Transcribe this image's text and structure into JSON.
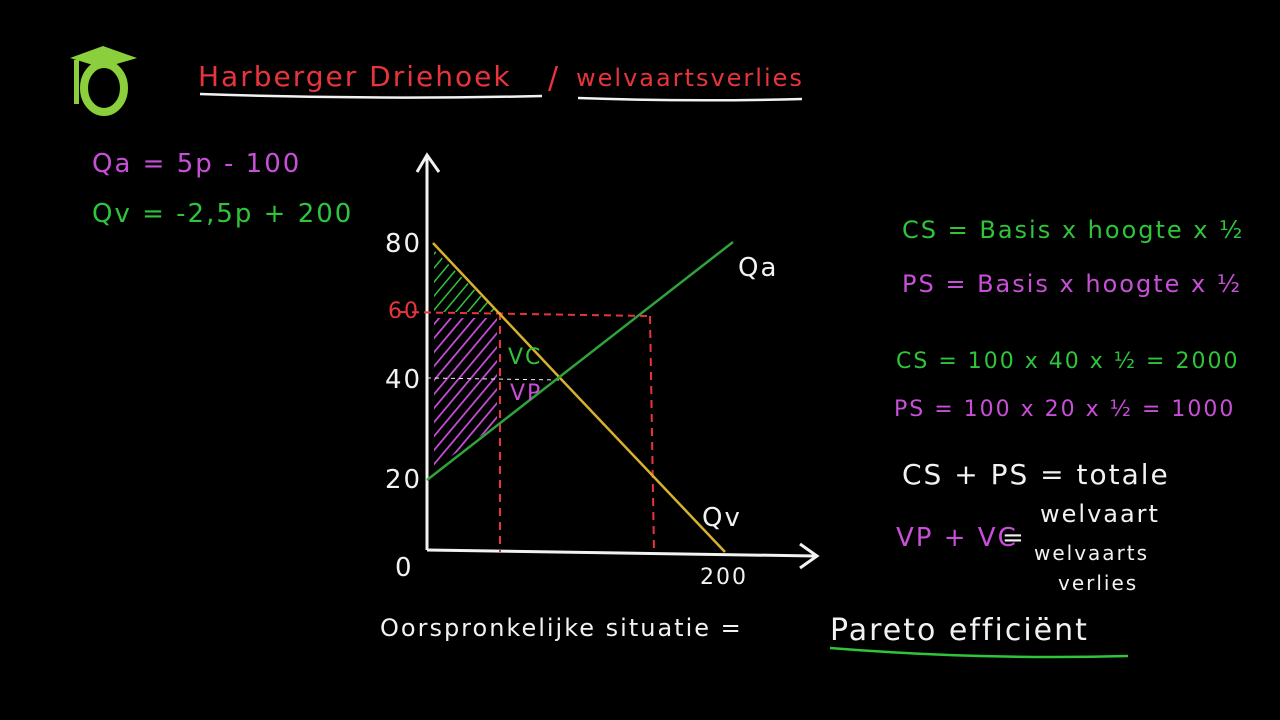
{
  "title": {
    "part1": "Harberger Driehoek",
    "separator": "/",
    "part2": "welvaartsverlies"
  },
  "equations": [
    "Qa = 5p - 100",
    "Qv = -2,5p + 200"
  ],
  "graph": {
    "y_labels": [
      "80",
      "60",
      "40",
      "20"
    ],
    "origin": "0",
    "x_label": "200",
    "curve_labels": [
      "Qa",
      "Qv"
    ],
    "region_labels": [
      "VC",
      "VP"
    ]
  },
  "formulas": [
    "CS = Basis x hoogte x ½",
    "PS = Basis x hoogte x ½",
    "CS = 100 x 40 x ½ = 2000",
    "PS = 100 x 20 x ½ = 1000",
    "CS + PS = totale",
    "welvaart",
    "VP + VC",
    "=",
    "welvaarts",
    "verlies"
  ],
  "footer": {
    "text": "Oorspronkelijke situatie =",
    "highlight": "Pareto efficiënt"
  }
}
